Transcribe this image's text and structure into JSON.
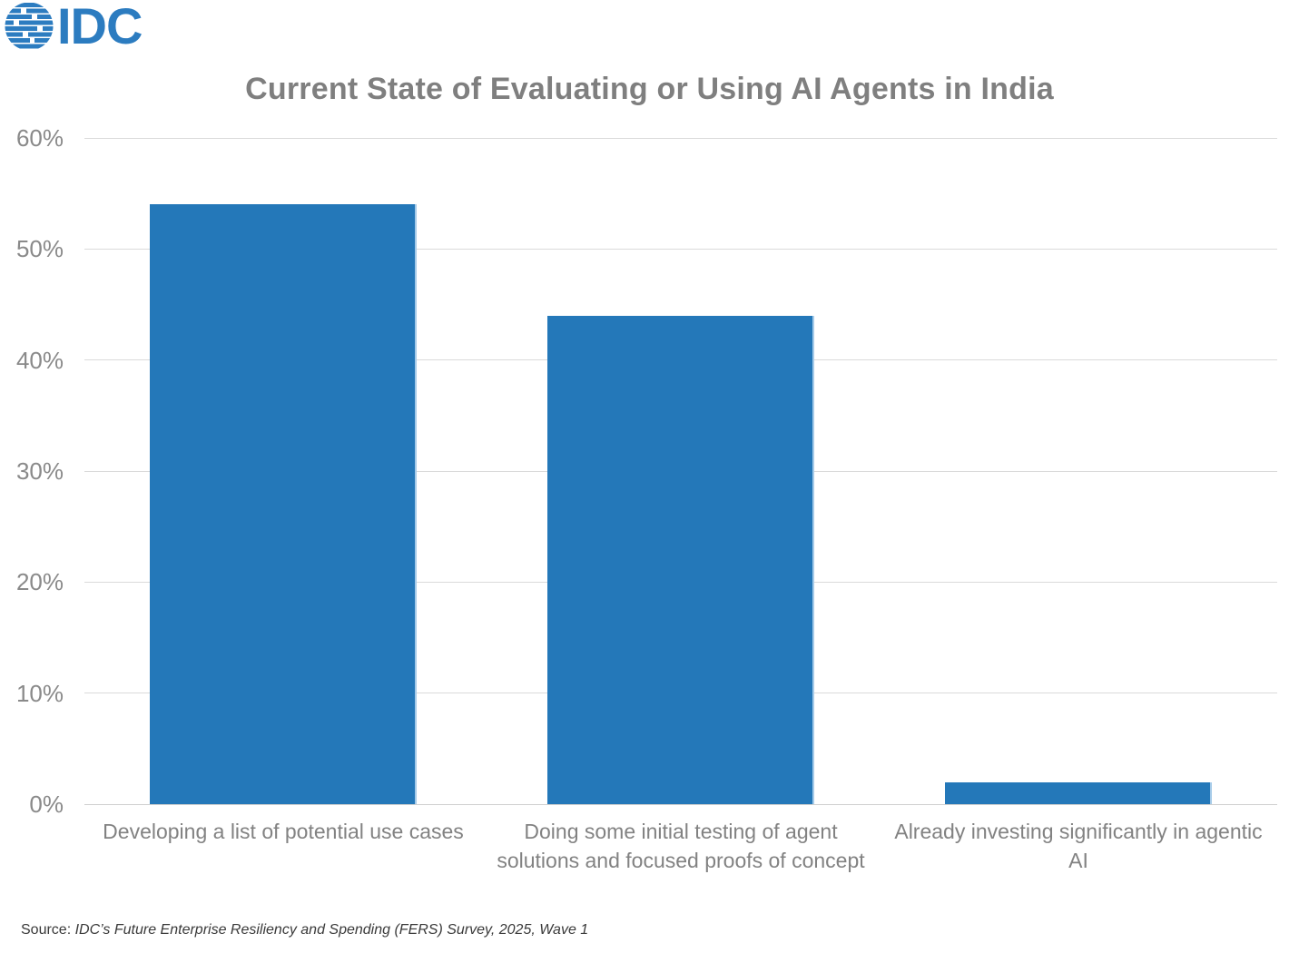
{
  "logo": {
    "text": "IDC",
    "color": "#2c7cc0"
  },
  "chart_data": {
    "type": "bar",
    "title": "Current State of Evaluating or Using AI Agents in India",
    "categories": [
      "Developing a list of potential use cases",
      "Doing some initial testing of agent solutions and focused proofs of concept",
      "Already investing significantly in agentic AI"
    ],
    "values": [
      54,
      44,
      2
    ],
    "xlabel": "",
    "ylabel": "",
    "ylim": [
      0,
      60
    ],
    "ytick_step": 10,
    "ytick_labels": [
      "0%",
      "10%",
      "20%",
      "30%",
      "40%",
      "50%",
      "60%"
    ],
    "grid": true,
    "legend": "none",
    "bar_color": "#2478b9",
    "bar_edge_color": "#a6cbe9",
    "gridline_color": "#dadada",
    "title_color": "#7f7f7f",
    "axis_label_color": "#8a8a8a"
  },
  "source": {
    "prefix": "Source: ",
    "text": "IDC’s Future Enterprise Resiliency and Spending (FERS) Survey, 2025, Wave 1"
  }
}
